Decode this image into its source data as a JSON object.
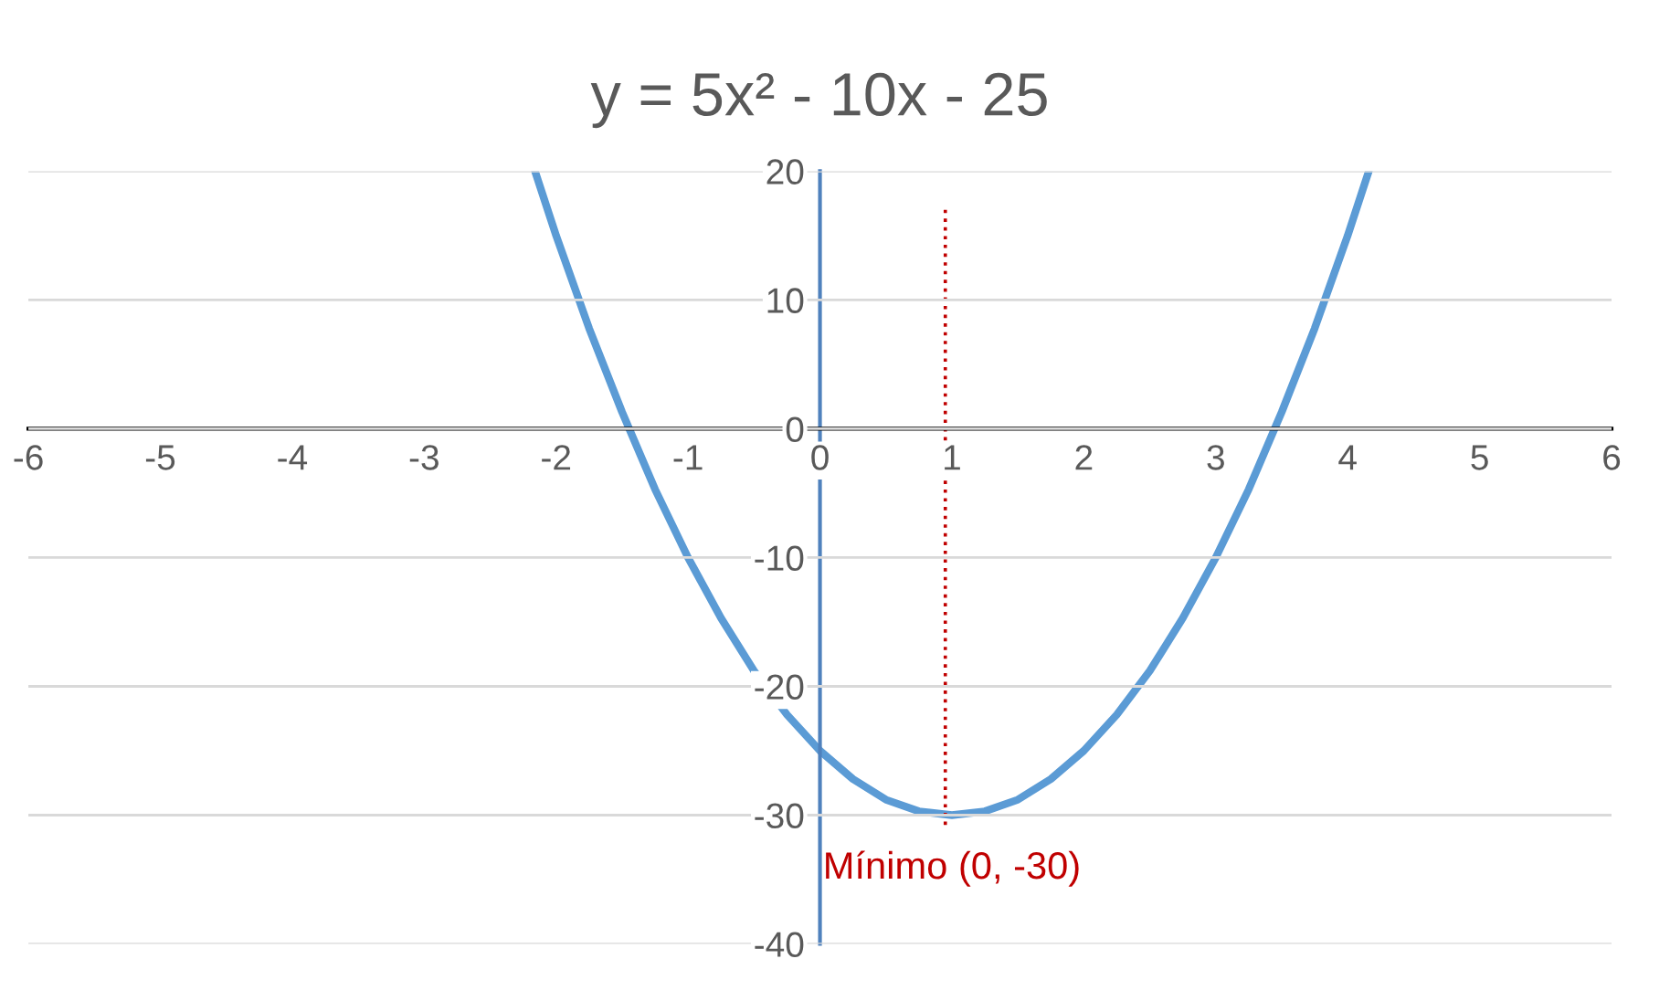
{
  "chart_data": {
    "type": "line",
    "title": "y = 5x² - 10x - 25",
    "series": [
      {
        "color": "#5b9bd5",
        "x": [
          -2.16,
          -2,
          -1.75,
          -1.5,
          -1.25,
          -1,
          -0.75,
          -0.5,
          -0.25,
          0,
          0.25,
          0.5,
          0.75,
          1,
          1.25,
          1.5,
          1.75,
          2,
          2.25,
          2.5,
          2.75,
          3,
          3.25,
          3.5,
          3.75,
          4,
          4.16
        ],
        "values": [
          20,
          15,
          7.8,
          1.3,
          -4.7,
          -10,
          -14.7,
          -18.8,
          -22.2,
          -25,
          -27.2,
          -28.8,
          -29.7,
          -30,
          -29.7,
          -28.8,
          -27.2,
          -25,
          -22.2,
          -18.8,
          -14.7,
          -10,
          -4.7,
          1.3,
          7.8,
          15,
          20
        ]
      },
      {
        "type": "line",
        "color": "#c00000",
        "line_style": "dotted",
        "x": [
          0.95,
          0.95
        ],
        "values": [
          17,
          -31
        ]
      }
    ],
    "annotations": [
      {
        "text": "Mínimo (0, -30)",
        "x": 1,
        "y": -30
      }
    ],
    "xlim": [
      -6,
      6
    ],
    "xticks": [
      -6,
      -5,
      -4,
      -3,
      -2,
      -1,
      0,
      1,
      2,
      3,
      4,
      5,
      6
    ],
    "ylim": [
      -40,
      20
    ],
    "yticks": [
      -40,
      -30,
      -20,
      -10,
      0,
      10,
      20
    ],
    "grid": "y",
    "legend": false,
    "marker": "none"
  }
}
